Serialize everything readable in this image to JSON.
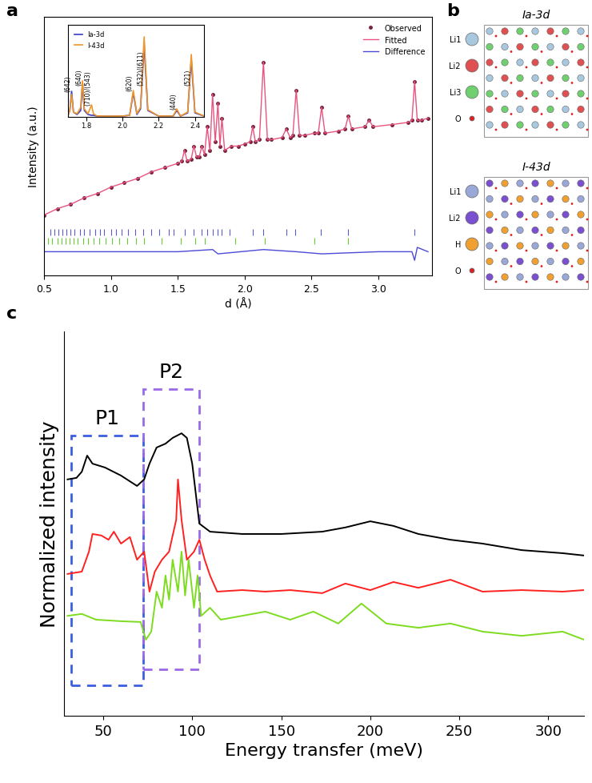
{
  "chart_data": [
    {
      "panel": "a",
      "type": "line",
      "x_label": "d (Å)",
      "y_label": "Intensity (a.u.)",
      "xlim": [
        0.5,
        3.4
      ],
      "xticks": [
        0.5,
        1.0,
        1.5,
        2.0,
        2.5,
        3.0
      ],
      "ylim": [
        0,
        120
      ],
      "tick_labels": "x",
      "legend": "upper right",
      "series": [
        {
          "name": "Observed",
          "type": "scatter",
          "marker": "o",
          "color": "#7b1f3a",
          "x": [
            0.5,
            0.6,
            0.7,
            0.8,
            0.9,
            1.0,
            1.1,
            1.2,
            1.3,
            1.4,
            1.5,
            1.53,
            1.55,
            1.57,
            1.6,
            1.62,
            1.64,
            1.66,
            1.68,
            1.7,
            1.72,
            1.74,
            1.76,
            1.78,
            1.8,
            1.815,
            1.83,
            1.85,
            1.9,
            1.95,
            2.0,
            2.04,
            2.06,
            2.08,
            2.11,
            2.14,
            2.17,
            2.2,
            2.28,
            2.31,
            2.34,
            2.36,
            2.385,
            2.41,
            2.45,
            2.52,
            2.55,
            2.575,
            2.6,
            2.7,
            2.75,
            2.775,
            2.8,
            2.9,
            2.93,
            2.96,
            3.1,
            3.22,
            3.25,
            3.27,
            3.29,
            3.32,
            3.37
          ],
          "values": [
            28,
            31,
            33,
            36,
            38,
            41,
            43,
            45,
            48,
            50,
            52,
            53,
            58,
            53,
            54,
            60,
            55,
            55,
            60,
            56,
            69,
            58,
            84,
            62,
            80,
            60,
            73,
            58,
            60,
            60,
            61,
            62,
            69,
            62,
            63,
            99,
            63,
            63,
            64,
            68,
            64,
            65,
            86,
            65,
            65,
            66,
            66,
            78,
            66,
            67,
            68,
            74,
            68,
            69,
            72,
            69,
            70,
            71,
            72,
            90,
            72,
            72,
            73
          ]
        },
        {
          "name": "Fitted",
          "type": "line",
          "color": "#e75480",
          "x": [
            0.5,
            0.6,
            0.7,
            0.8,
            0.9,
            1.0,
            1.1,
            1.2,
            1.3,
            1.4,
            1.5,
            1.53,
            1.55,
            1.57,
            1.6,
            1.62,
            1.64,
            1.66,
            1.68,
            1.7,
            1.72,
            1.74,
            1.76,
            1.78,
            1.8,
            1.815,
            1.83,
            1.85,
            1.9,
            1.95,
            2.0,
            2.04,
            2.06,
            2.08,
            2.11,
            2.14,
            2.17,
            2.2,
            2.28,
            2.31,
            2.34,
            2.36,
            2.385,
            2.41,
            2.45,
            2.52,
            2.55,
            2.575,
            2.6,
            2.7,
            2.75,
            2.775,
            2.8,
            2.9,
            2.93,
            2.96,
            3.1,
            3.22,
            3.25,
            3.27,
            3.29,
            3.32,
            3.37
          ],
          "values": [
            28,
            31,
            33,
            36,
            38,
            41,
            43,
            45,
            48,
            50,
            52,
            53,
            58,
            53,
            54,
            60,
            55,
            55,
            60,
            56,
            69,
            58,
            84,
            62,
            80,
            60,
            73,
            58,
            60,
            60,
            61,
            62,
            69,
            62,
            63,
            99,
            63,
            63,
            64,
            68,
            64,
            65,
            86,
            65,
            65,
            66,
            66,
            78,
            66,
            67,
            68,
            74,
            68,
            69,
            72,
            69,
            70,
            71,
            72,
            90,
            72,
            72,
            73
          ]
        },
        {
          "name": "Difference",
          "type": "line",
          "color": "#4b4bd6",
          "x": [
            0.5,
            1.0,
            1.5,
            1.76,
            1.8,
            2.14,
            2.385,
            2.575,
            3.0,
            3.25,
            3.27,
            3.29,
            3.37
          ],
          "values": [
            11,
            11,
            11,
            12,
            10,
            12,
            11,
            10,
            11,
            11,
            7,
            13,
            11
          ]
        }
      ],
      "reflection_ticks": [
        {
          "color": "#5b5bdc",
          "positions": [
            0.55,
            0.58,
            0.61,
            0.64,
            0.67,
            0.7,
            0.73,
            0.77,
            0.8,
            0.84,
            0.88,
            0.92,
            0.95,
            1.0,
            1.04,
            1.08,
            1.13,
            1.18,
            1.24,
            1.3,
            1.36,
            1.43,
            1.47,
            1.55,
            1.62,
            1.68,
            1.72,
            1.76,
            1.8,
            1.83,
            1.89,
            2.06,
            2.14,
            2.31,
            2.38,
            2.57,
            2.77,
            3.27
          ]
        },
        {
          "color": "#66cc33",
          "positions": [
            0.53,
            0.56,
            0.6,
            0.63,
            0.66,
            0.69,
            0.72,
            0.75,
            0.79,
            0.83,
            0.87,
            0.91,
            0.96,
            1.01,
            1.06,
            1.12,
            1.19,
            1.25,
            1.38,
            1.52,
            1.63,
            1.7,
            1.93,
            2.15,
            2.52,
            2.77
          ]
        }
      ],
      "inset": {
        "type": "line",
        "xlim": [
          1.7,
          2.45
        ],
        "xticks": [
          1.8,
          2.0,
          2.2,
          2.4
        ],
        "ylim": [
          0,
          115
        ],
        "tick_labels": "x",
        "legend": "upper left",
        "series": [
          {
            "name": "Ia-3d",
            "color": "#3b3bc8",
            "x": [
              1.7,
              1.71,
              1.72,
              1.73,
              1.75,
              1.77,
              1.78,
              1.79,
              1.81,
              1.83,
              1.84,
              1.86,
              1.9,
              2.0,
              2.04,
              2.06,
              2.08,
              2.1,
              2.12,
              2.14,
              2.2,
              2.28,
              2.3,
              2.32,
              2.36,
              2.38,
              2.4,
              2.45
            ],
            "values": [
              2,
              8,
              32,
              6,
              3,
              8,
              42,
              8,
              3,
              2,
              2,
              1,
              1,
              1,
              2,
              30,
              3,
              10,
              90,
              8,
              1,
              1,
              8,
              1,
              5,
              72,
              5,
              1
            ]
          },
          {
            "name": "I-43d",
            "color": "#f0962a",
            "x": [
              1.7,
              1.71,
              1.72,
              1.73,
              1.75,
              1.77,
              1.78,
              1.79,
              1.81,
              1.83,
              1.84,
              1.86,
              1.9,
              2.0,
              2.04,
              2.06,
              2.08,
              2.1,
              2.12,
              2.14,
              2.2,
              2.28,
              2.3,
              2.32,
              2.36,
              2.38,
              2.4,
              2.45
            ],
            "values": [
              2,
              8,
              28,
              6,
              4,
              12,
              45,
              10,
              4,
              15,
              4,
              1,
              1,
              1,
              2,
              33,
              4,
              12,
              100,
              9,
              1,
              1,
              10,
              1,
              6,
              78,
              6,
              1
            ]
          }
        ],
        "annotations": [
          {
            "text": "(642)",
            "x": 1.72
          },
          {
            "text": "(640)",
            "x": 1.78
          },
          {
            "text": "(710)/(543)",
            "x": 1.83
          },
          {
            "text": "(620)",
            "x": 2.06
          },
          {
            "text": "(532)/(611)",
            "x": 2.12
          },
          {
            "text": "(440)",
            "x": 2.3
          },
          {
            "text": "(521)",
            "x": 2.38
          }
        ]
      }
    },
    {
      "panel": "c",
      "type": "line",
      "x_label": "Energy transfer (meV)",
      "y_label": "Normalized intensity",
      "xlim": [
        28,
        320
      ],
      "xticks": [
        50,
        100,
        150,
        200,
        250,
        300
      ],
      "ylim": [
        0,
        100
      ],
      "tick_labels": "x",
      "series": [
        {
          "color": "#000000",
          "x": [
            30,
            35,
            38,
            41,
            44,
            51,
            60,
            69,
            73,
            76,
            80,
            85,
            89,
            94,
            97,
            100,
            104,
            110,
            128,
            150,
            173,
            186,
            200,
            213,
            227,
            245,
            263,
            285,
            308,
            320
          ],
          "values": [
            61.5,
            61.9,
            63.5,
            67.7,
            65.6,
            64.6,
            62.5,
            59.8,
            61.5,
            65.6,
            69.8,
            70.8,
            72.3,
            73.5,
            72.3,
            65.6,
            50,
            47.9,
            47.3,
            47.3,
            47.9,
            49,
            50.6,
            49.4,
            47.3,
            45.8,
            44.8,
            43.1,
            42.3,
            41.7
          ]
        },
        {
          "color": "#ff2020",
          "x": [
            30,
            38,
            42,
            44,
            49,
            53,
            56,
            60,
            65,
            69,
            73,
            76,
            79,
            83,
            87,
            91,
            92,
            94,
            97,
            101,
            104,
            107,
            110,
            114,
            128,
            141,
            155,
            173,
            186,
            200,
            213,
            227,
            245,
            263,
            285,
            308,
            320
          ],
          "values": [
            36.9,
            37.5,
            42.7,
            47.3,
            46.9,
            45.8,
            47.9,
            44.8,
            46.5,
            40.6,
            42.7,
            32.3,
            37.5,
            40.6,
            42.7,
            51,
            61.5,
            51,
            40.6,
            42.7,
            45.8,
            40.6,
            36.5,
            32.3,
            32.7,
            32.3,
            32.7,
            31.9,
            34.4,
            32.7,
            34.8,
            33.3,
            35.4,
            32.3,
            32.7,
            32.3,
            32.7
          ]
        },
        {
          "color": "#7ddc1f",
          "x": [
            30,
            38,
            46,
            60,
            71,
            74,
            77,
            80,
            83,
            85,
            87,
            89,
            92,
            94,
            96,
            98,
            101,
            103,
            105,
            110,
            116,
            128,
            141,
            155,
            168,
            182,
            195,
            209,
            227,
            245,
            263,
            285,
            308,
            320
          ],
          "values": [
            26,
            26.5,
            25,
            24.6,
            24.4,
            19.8,
            21.9,
            32.3,
            28.1,
            36.5,
            30.2,
            40.6,
            32.3,
            42.7,
            31.3,
            40.6,
            28.1,
            36.5,
            26,
            28.1,
            25,
            26,
            27.1,
            25,
            27.1,
            24,
            29.2,
            24,
            22.9,
            24,
            21.9,
            20.8,
            21.9,
            19.8
          ]
        }
      ],
      "regions": [
        {
          "label": "P1",
          "x": [
            32,
            72.5
          ],
          "color": "#3a5fe0"
        },
        {
          "label": "P2",
          "x": [
            72.5,
            104
          ],
          "color": "#9a6ae6"
        }
      ]
    }
  ],
  "diagram": {
    "panel": "b",
    "structures": [
      {
        "title": "Ia-3d",
        "atoms": [
          {
            "label": "Li1",
            "color": "#a8c8e0"
          },
          {
            "label": "Li2",
            "color": "#e05050"
          },
          {
            "label": "Li3",
            "color": "#70d070"
          },
          {
            "label": "O",
            "color": "#e02020"
          }
        ]
      },
      {
        "title": "I-43d",
        "atoms": [
          {
            "label": "Li1",
            "color": "#9aa8d8"
          },
          {
            "label": "Li2",
            "color": "#7a4fd0"
          },
          {
            "label": "H",
            "color": "#f0a030"
          },
          {
            "label": "O",
            "color": "#e02020"
          }
        ]
      }
    ]
  }
}
